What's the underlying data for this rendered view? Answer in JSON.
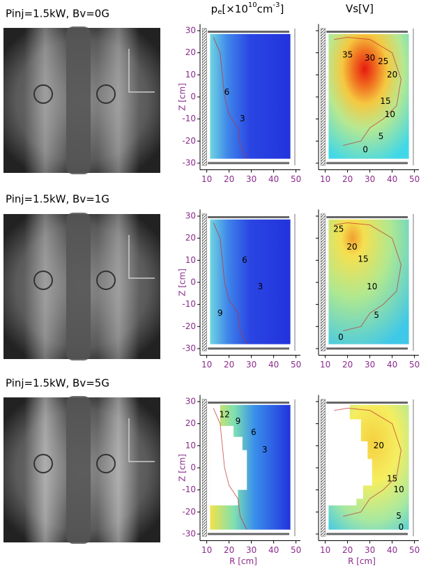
{
  "figure": {
    "columns": {
      "density": {
        "base": "p",
        "sub": "e",
        "open": "[×10",
        "exp1": "10",
        "unit": "cm",
        "exp2": "-3",
        "close": "]"
      },
      "potential": "Vs[V]"
    },
    "axes": {
      "z_label": "Z [cm]",
      "r_label": "R [cm]",
      "zlim": [
        -33,
        33
      ],
      "zticks": [
        30,
        20,
        10,
        0,
        -10,
        -20,
        -30
      ],
      "rlim": [
        7,
        52
      ],
      "rticks": [
        10,
        20,
        30,
        40,
        50
      ]
    },
    "rows": [
      {
        "label": "Pinj=1.5kW, Bv=0G",
        "density_contours": [
          6,
          3
        ],
        "potential_contours": [
          35,
          30,
          25,
          20,
          15,
          10,
          5,
          0
        ]
      },
      {
        "label": "Pinj=1.5kW, Bv=1G",
        "density_contours": [
          6,
          3,
          9
        ],
        "potential_contours": [
          25,
          20,
          15,
          10,
          5,
          0
        ]
      },
      {
        "label": "Pinj=1.5kW, Bv=5G",
        "density_contours": [
          12,
          9,
          6,
          3
        ],
        "potential_contours": [
          20,
          15,
          10,
          5,
          0
        ]
      }
    ]
  }
}
